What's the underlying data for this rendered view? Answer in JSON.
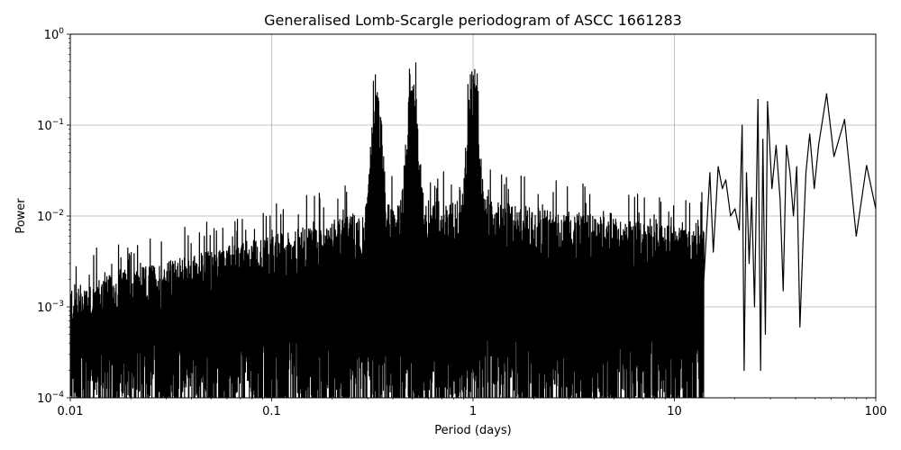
{
  "chart_data": {
    "type": "line",
    "title": "Generalised Lomb-Scargle periodogram of ASCC 1661283",
    "xlabel": "Period (days)",
    "ylabel": "Power",
    "x_scale": "log",
    "y_scale": "log",
    "xlim": [
      0.01,
      100
    ],
    "ylim": [
      0.0001,
      1
    ],
    "grid": true,
    "line_color": "#000000",
    "x_ticks": [
      {
        "value": 0.01,
        "label": "0.01"
      },
      {
        "value": 0.1,
        "label": "0.1"
      },
      {
        "value": 1,
        "label": "1"
      },
      {
        "value": 10,
        "label": "10"
      },
      {
        "value": 100,
        "label": "100"
      }
    ],
    "y_ticks": [
      {
        "value": 0.0001,
        "base": "10",
        "exp": "−4"
      },
      {
        "value": 0.001,
        "base": "10",
        "exp": "−3"
      },
      {
        "value": 0.01,
        "base": "10",
        "exp": "−2"
      },
      {
        "value": 0.1,
        "base": "10",
        "exp": "−1"
      },
      {
        "value": 1,
        "base": "10",
        "exp": "0"
      }
    ],
    "peaks": [
      {
        "period": 0.333,
        "power": 0.18
      },
      {
        "period": 0.5,
        "power": 0.26
      },
      {
        "period": 1.0,
        "power": 0.31
      },
      {
        "period": 26.0,
        "power": 0.19
      },
      {
        "period": 29.0,
        "power": 0.18
      },
      {
        "period": 57.0,
        "power": 0.22
      },
      {
        "period": 70.0,
        "power": 0.115
      }
    ],
    "series": [
      {
        "values": [
          [
            14.0,
            0.002
          ],
          [
            15.0,
            0.03
          ],
          [
            15.6,
            0.004
          ],
          [
            16.5,
            0.035
          ],
          [
            17.3,
            0.02
          ],
          [
            18.0,
            0.025
          ],
          [
            19.0,
            0.01
          ],
          [
            20.0,
            0.012
          ],
          [
            21.0,
            0.007
          ],
          [
            21.7,
            0.1
          ],
          [
            22.2,
            0.0002
          ],
          [
            22.8,
            0.03
          ],
          [
            23.5,
            0.003
          ],
          [
            24.2,
            0.016
          ],
          [
            25.0,
            0.001
          ],
          [
            26.0,
            0.19
          ],
          [
            26.8,
            0.0002
          ],
          [
            27.5,
            0.07
          ],
          [
            28.3,
            0.0005
          ],
          [
            29.0,
            0.18
          ],
          [
            30.5,
            0.02
          ],
          [
            32.0,
            0.06
          ],
          [
            33.5,
            0.015
          ],
          [
            34.7,
            0.0015
          ],
          [
            36.0,
            0.06
          ],
          [
            37.5,
            0.03
          ],
          [
            39.0,
            0.01
          ],
          [
            40.5,
            0.035
          ],
          [
            42.0,
            0.0006
          ],
          [
            43.5,
            0.005
          ],
          [
            45.0,
            0.03
          ],
          [
            47.0,
            0.08
          ],
          [
            49.5,
            0.02
          ],
          [
            52.0,
            0.06
          ],
          [
            57.0,
            0.22
          ],
          [
            62.0,
            0.045
          ],
          [
            70.0,
            0.115
          ],
          [
            80.0,
            0.006
          ],
          [
            90.0,
            0.036
          ],
          [
            100.0,
            0.012
          ]
        ]
      }
    ]
  }
}
